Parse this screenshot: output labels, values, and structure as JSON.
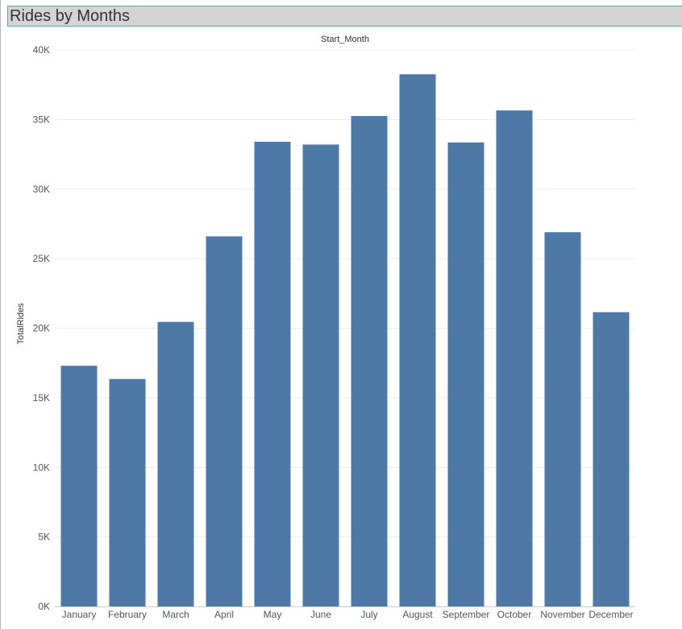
{
  "title": "Rides by Months",
  "chart_data": {
    "type": "bar",
    "column_header": "Start_Month",
    "ylabel": "TotalRides",
    "xlabel": "",
    "categories": [
      "January",
      "February",
      "March",
      "April",
      "May",
      "June",
      "July",
      "August",
      "September",
      "October",
      "November",
      "December"
    ],
    "values": [
      17300,
      16350,
      20450,
      26600,
      33400,
      33200,
      35250,
      38250,
      33350,
      35650,
      26900,
      21150
    ],
    "ylim": [
      0,
      40000
    ],
    "yticks": [
      0,
      5000,
      10000,
      15000,
      20000,
      25000,
      30000,
      35000,
      40000
    ],
    "ytick_labels": [
      "0K",
      "5K",
      "10K",
      "15K",
      "20K",
      "25K",
      "30K",
      "35K",
      "40K"
    ],
    "bar_color": "#4e79a7",
    "grid": true
  }
}
